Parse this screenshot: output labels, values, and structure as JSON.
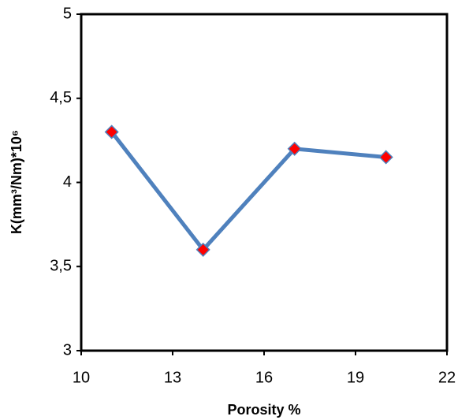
{
  "chart_data": {
    "type": "line",
    "x_label": "Porosity %",
    "y_label": "K(mm³/Nm)*10⁶",
    "x": [
      11,
      14,
      17,
      20
    ],
    "values": [
      4.3,
      3.6,
      4.2,
      4.15
    ],
    "color": "#4f81bd",
    "marker_color": "#ff0000",
    "xlim": [
      10,
      22
    ],
    "xticks": [
      10,
      13,
      16,
      19,
      22
    ],
    "ylim": [
      3,
      5
    ],
    "yticks": [
      3,
      {
        "value": 3.5,
        "label": "3,5"
      },
      4,
      {
        "value": 4.5,
        "label": "4,5"
      },
      5
    ],
    "grid": false
  }
}
